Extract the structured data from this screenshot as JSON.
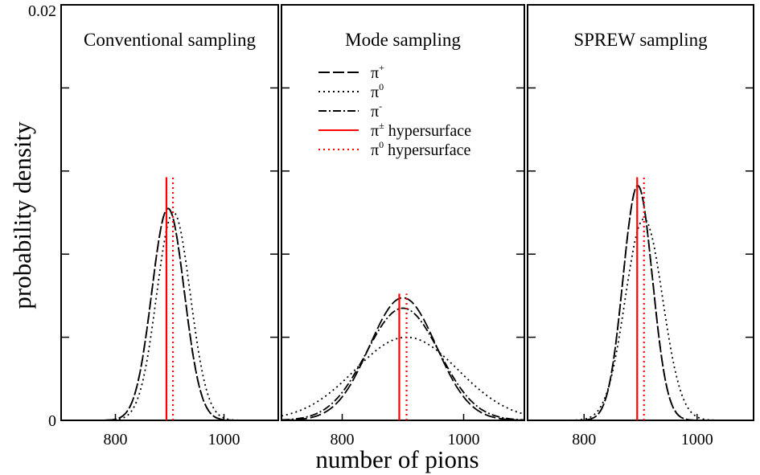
{
  "figure": {
    "ylabel": "probability density",
    "xlabel": "number of pions",
    "y_tick_labels": [
      "0.02",
      "0"
    ]
  },
  "legend": [
    {
      "label": "π",
      "sup": "+",
      "suffix": "",
      "style": "dashed",
      "color": "#000000"
    },
    {
      "label": "π",
      "sup": "0",
      "suffix": "",
      "style": "dotted",
      "color": "#000000"
    },
    {
      "label": "π",
      "sup": "-",
      "suffix": "",
      "style": "dashdot",
      "color": "#000000"
    },
    {
      "label": "π",
      "sup": "±",
      "suffix": " hypersurface",
      "style": "solid",
      "color": "#ff0000"
    },
    {
      "label": "π",
      "sup": "0",
      "suffix": " hypersurface",
      "style": "dotted",
      "color": "#ff0000"
    }
  ],
  "chart_data": [
    {
      "type": "line",
      "title": "Conventional sampling",
      "xlim": [
        700,
        1100
      ],
      "ylim": [
        0,
        0.02
      ],
      "x_ticks": [
        800,
        1000
      ],
      "y_ticks": [
        0,
        0.004,
        0.008,
        0.012,
        0.016,
        0.02
      ],
      "series": [
        {
          "style": "dashed",
          "color": "#000000",
          "curve": "gauss",
          "mean": 897,
          "sd": 30,
          "peak": 0.0102
        },
        {
          "style": "dotted",
          "color": "#000000",
          "curve": "gauss",
          "mean": 907,
          "sd": 31,
          "peak": 0.01
        },
        {
          "style": "dashdot",
          "color": "#000000",
          "curve": "gauss",
          "mean": 897,
          "sd": 30,
          "peak": 0.0102
        }
      ],
      "vlines": [
        {
          "x": 894,
          "y_top": 0.0117,
          "style": "solid",
          "color": "#ff0000"
        },
        {
          "x": 906,
          "y_top": 0.0117,
          "style": "dotted",
          "color": "#ff0000"
        }
      ]
    },
    {
      "type": "line",
      "title": "Mode sampling",
      "xlim": [
        700,
        1100
      ],
      "ylim": [
        0,
        0.02
      ],
      "x_ticks": [
        800,
        1000
      ],
      "y_ticks": [
        0,
        0.004,
        0.008,
        0.012,
        0.016,
        0.02
      ],
      "series": [
        {
          "style": "dashed",
          "color": "#000000",
          "curve": "gauss",
          "mean": 900,
          "sd": 55,
          "peak": 0.0059
        },
        {
          "style": "dotted",
          "color": "#000000",
          "curve": "gauss",
          "mean": 906,
          "sd": 85,
          "peak": 0.004
        },
        {
          "style": "dashdot",
          "color": "#000000",
          "curve": "gauss",
          "mean": 900,
          "sd": 60,
          "peak": 0.0054
        }
      ],
      "vlines": [
        {
          "x": 894,
          "y_top": 0.0061,
          "style": "solid",
          "color": "#ff0000"
        },
        {
          "x": 906,
          "y_top": 0.0061,
          "style": "dotted",
          "color": "#ff0000"
        }
      ]
    },
    {
      "type": "line",
      "title": "SPREW sampling",
      "xlim": [
        700,
        1100
      ],
      "ylim": [
        0,
        0.02
      ],
      "x_ticks": [
        800,
        1000
      ],
      "y_ticks": [
        0,
        0.004,
        0.008,
        0.012,
        0.016,
        0.02
      ],
      "series": [
        {
          "style": "dashed",
          "color": "#000000",
          "curve": "gauss",
          "mean": 895,
          "sd": 26,
          "peak": 0.0113
        },
        {
          "style": "dotted",
          "color": "#000000",
          "curve": "gauss",
          "mean": 906,
          "sd": 33,
          "peak": 0.0097
        },
        {
          "style": "dashdot",
          "color": "#000000",
          "curve": "gauss",
          "mean": 895,
          "sd": 26,
          "peak": 0.0113
        }
      ],
      "vlines": [
        {
          "x": 894,
          "y_top": 0.0117,
          "style": "solid",
          "color": "#ff0000"
        },
        {
          "x": 906,
          "y_top": 0.0117,
          "style": "dotted",
          "color": "#ff0000"
        }
      ]
    }
  ]
}
